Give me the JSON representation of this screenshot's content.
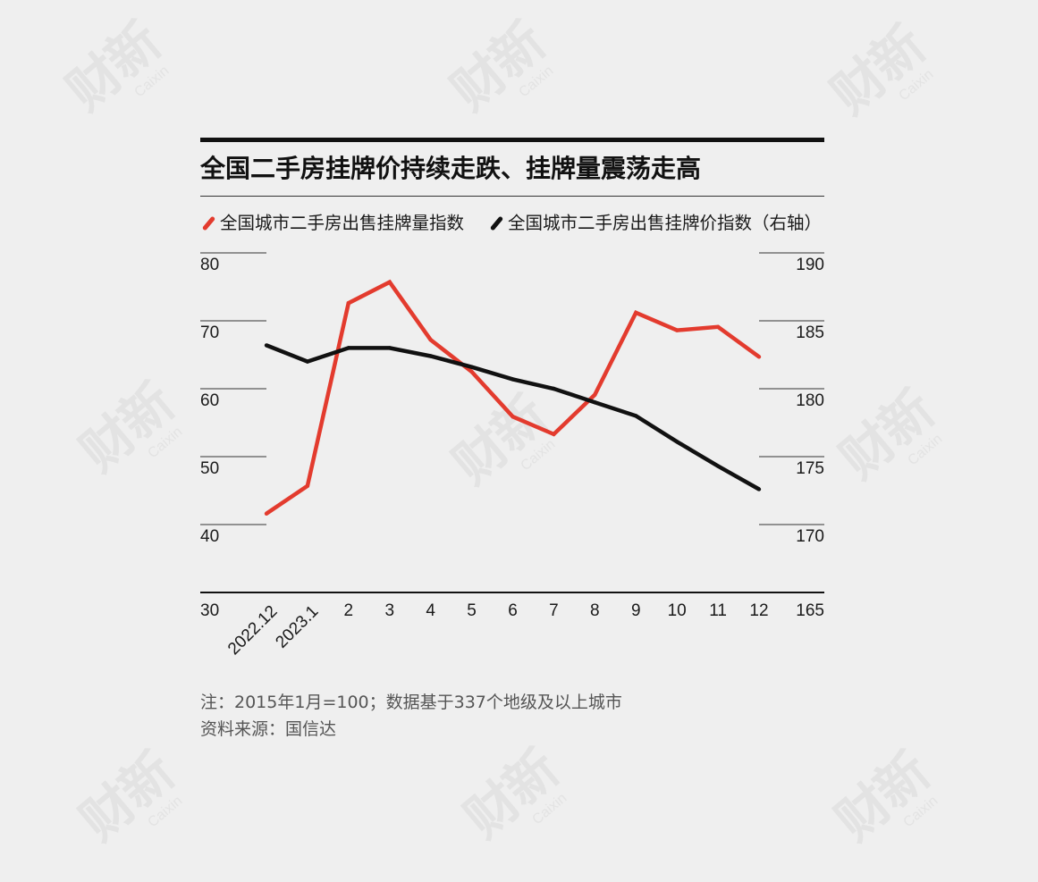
{
  "watermark": {
    "mark": "财新",
    "sub": "Caixin"
  },
  "note": "注：2015年1月=100；数据基于337个地级及以上城市",
  "source": "资料来源：国信达",
  "chart_data": {
    "type": "line",
    "title": "全国二手房挂牌价持续走跌、挂牌量震荡走高",
    "categories": [
      "2022.12",
      "2023.1",
      "2",
      "3",
      "4",
      "5",
      "6",
      "7",
      "8",
      "9",
      "10",
      "11",
      "12"
    ],
    "series": [
      {
        "name": "全国城市二手房出售挂牌量指数",
        "axis": "left",
        "color": "#e33b2e",
        "values": [
          41.6,
          45.7,
          72.6,
          75.7,
          67.2,
          62.5,
          55.9,
          53.3,
          59.1,
          71.2,
          68.6,
          69.1,
          64.7
        ]
      },
      {
        "name": "全国城市二手房出售挂牌价指数（右轴）",
        "axis": "right",
        "color": "#111111",
        "values": [
          183.2,
          182.0,
          183.0,
          183.0,
          182.4,
          181.6,
          180.7,
          180.0,
          179.0,
          178.0,
          176.1,
          174.3,
          172.6
        ]
      }
    ],
    "y_left": {
      "ylim": [
        30,
        80
      ],
      "ticks": [
        80,
        70,
        60,
        50,
        40,
        30
      ]
    },
    "y_right": {
      "ylim": [
        165,
        190
      ],
      "ticks": [
        190,
        185,
        180,
        175,
        170,
        165
      ]
    },
    "grid": true,
    "legend_position": "top"
  }
}
